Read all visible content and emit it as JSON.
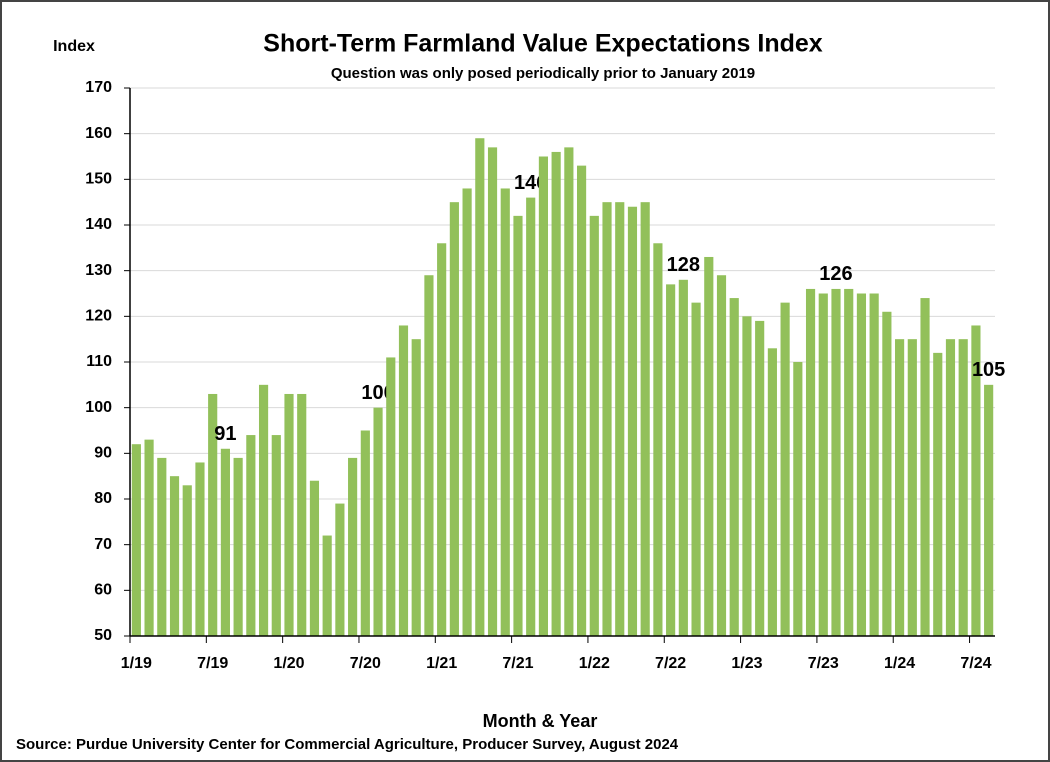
{
  "chart_data": {
    "type": "bar",
    "title": "Short-Term Farmland Value Expectations Index",
    "subtitle": "Question was only posed periodically prior to January 2019",
    "y_label": "Index",
    "x_label": "Month & Year",
    "source": "Source: Purdue University Center for Commercial Agriculture, Producer Survey, August 2024",
    "categories": [
      "1/19",
      null,
      null,
      null,
      null,
      null,
      "7/19",
      null,
      null,
      null,
      null,
      null,
      "1/20",
      null,
      null,
      null,
      null,
      null,
      "7/20",
      null,
      null,
      null,
      null,
      null,
      "1/21",
      null,
      null,
      null,
      null,
      null,
      "7/21",
      null,
      null,
      null,
      null,
      null,
      "1/22",
      null,
      null,
      null,
      null,
      null,
      "7/22",
      null,
      null,
      null,
      null,
      null,
      "1/23",
      null,
      null,
      null,
      null,
      null,
      "7/23",
      null,
      null,
      null,
      null,
      null,
      "1/24",
      null,
      null,
      null,
      null,
      null,
      "7/24",
      null
    ],
    "values": [
      92,
      93,
      89,
      85,
      83,
      88,
      103,
      91,
      89,
      94,
      105,
      94,
      103,
      103,
      84,
      72,
      79,
      89,
      95,
      100,
      111,
      118,
      115,
      129,
      136,
      145,
      148,
      159,
      157,
      148,
      142,
      146,
      155,
      156,
      157,
      153,
      142,
      145,
      145,
      144,
      145,
      136,
      127,
      128,
      123,
      133,
      129,
      124,
      120,
      119,
      113,
      123,
      110,
      126,
      125,
      126,
      126,
      125,
      125,
      121,
      115,
      115,
      124,
      112,
      115,
      115,
      118,
      105
    ],
    "value_label_shown": [
      false,
      false,
      false,
      false,
      false,
      false,
      false,
      true,
      false,
      false,
      false,
      false,
      false,
      false,
      false,
      false,
      false,
      false,
      false,
      true,
      false,
      false,
      false,
      false,
      false,
      false,
      false,
      false,
      false,
      false,
      false,
      true,
      false,
      false,
      false,
      false,
      false,
      false,
      false,
      false,
      false,
      false,
      false,
      true,
      false,
      false,
      false,
      false,
      false,
      false,
      false,
      false,
      false,
      false,
      false,
      true,
      false,
      false,
      false,
      false,
      false,
      false,
      false,
      false,
      false,
      false,
      false,
      true
    ],
    "color": "#92c05a",
    "ylim": [
      50,
      170
    ],
    "yticks": [
      50,
      60,
      70,
      80,
      90,
      100,
      110,
      120,
      130,
      140,
      150,
      160,
      170
    ],
    "grid": true
  }
}
